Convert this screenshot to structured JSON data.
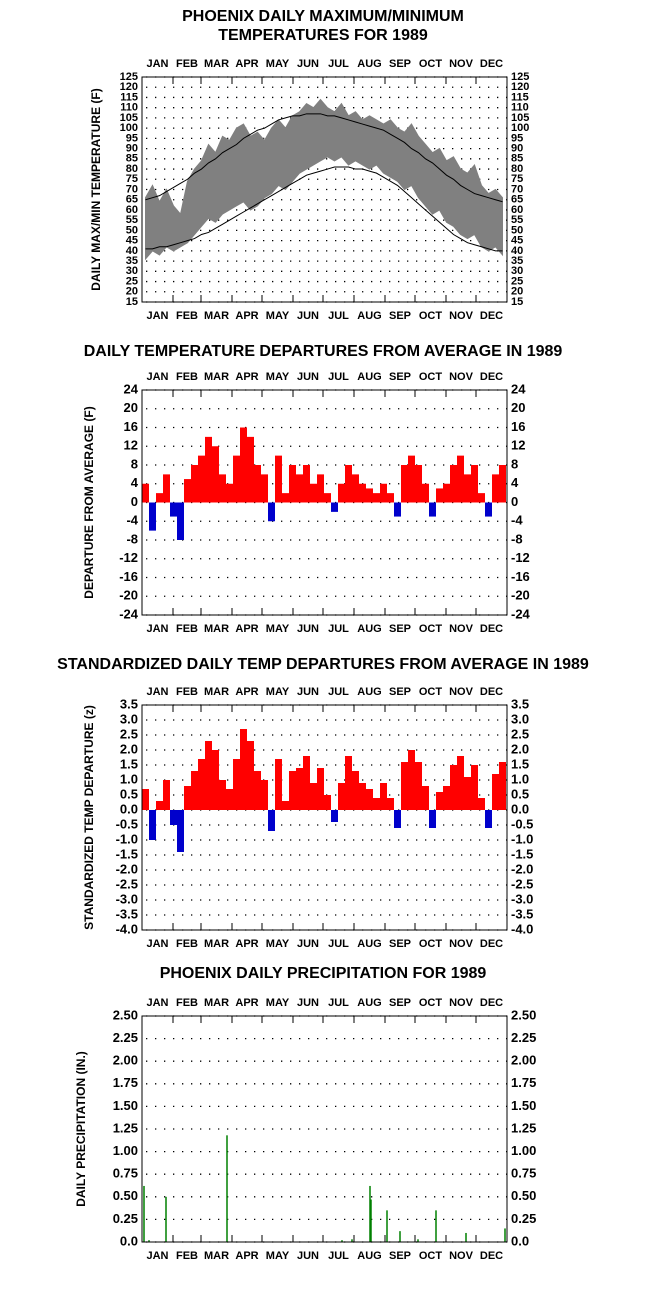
{
  "chart_data": [
    {
      "type": "band",
      "title": [
        "PHOENIX DAILY MAXIMUM/MINIMUM",
        "TEMPERATURES FOR 1989"
      ],
      "y_label": "DAILY MAX/MIN TEMPERATURE (F)",
      "categories": [
        "JAN",
        "FEB",
        "MAR",
        "APR",
        "MAY",
        "JUN",
        "JUL",
        "AUG",
        "SEP",
        "OCT",
        "NOV",
        "DEC"
      ],
      "xlim": [
        0,
        365
      ],
      "xticks": [
        0,
        31,
        59,
        90,
        120,
        151,
        181,
        212,
        243,
        273,
        304,
        334,
        365
      ],
      "ylim": [
        15,
        125
      ],
      "yticks": [
        15,
        20,
        25,
        30,
        35,
        40,
        45,
        50,
        55,
        60,
        65,
        70,
        75,
        80,
        85,
        90,
        95,
        100,
        105,
        110,
        115,
        120,
        125
      ],
      "grid": true,
      "x": [
        3.5,
        10.5,
        17.5,
        24.5,
        31.5,
        38.5,
        45.5,
        52.5,
        59.5,
        66.5,
        73.5,
        80.5,
        87.5,
        94.5,
        101.5,
        108.5,
        115.5,
        122.5,
        129.5,
        136.5,
        143.5,
        150.5,
        157.5,
        164.5,
        171.5,
        178.5,
        185.5,
        192.5,
        199.5,
        206.5,
        213.5,
        220.5,
        227.5,
        234.5,
        241.5,
        248.5,
        255.5,
        262.5,
        269.5,
        276.5,
        283.5,
        290.5,
        297.5,
        304.5,
        311.5,
        318.5,
        325.5,
        332.5,
        339.5,
        346.5,
        353.5,
        360.5
      ],
      "series": [
        {
          "color": "#808080",
          "values": [
            66,
            72,
            64,
            70,
            62,
            58,
            74,
            80,
            84,
            92,
            88,
            96,
            94,
            100,
            102,
            96,
            98,
            94,
            100,
            104,
            100,
            106,
            108,
            112,
            110,
            114,
            110,
            108,
            112,
            106,
            108,
            104,
            106,
            104,
            102,
            104,
            100,
            98,
            102,
            96,
            92,
            88,
            90,
            84,
            86,
            80,
            78,
            82,
            72,
            68,
            70,
            66
          ]
        },
        {
          "color": "#808080",
          "values": [
            36,
            40,
            38,
            42,
            40,
            42,
            44,
            48,
            52,
            56,
            54,
            58,
            60,
            62,
            64,
            60,
            62,
            66,
            68,
            72,
            70,
            74,
            78,
            80,
            82,
            84,
            86,
            84,
            86,
            82,
            84,
            82,
            80,
            82,
            78,
            76,
            74,
            70,
            72,
            66,
            62,
            58,
            60,
            54,
            52,
            48,
            46,
            48,
            42,
            40,
            42,
            38
          ]
        },
        {
          "color": "#000000",
          "values": [
            65,
            66,
            67,
            69,
            71,
            73,
            75,
            78,
            80,
            83,
            85,
            88,
            90,
            92,
            95,
            97,
            99,
            100,
            102,
            104,
            105,
            106,
            106,
            107,
            107,
            107,
            106,
            106,
            105,
            104,
            103,
            102,
            101,
            100,
            99,
            97,
            95,
            93,
            90,
            88,
            85,
            83,
            80,
            77,
            75,
            72,
            70,
            68,
            67,
            66,
            65,
            64
          ]
        },
        {
          "color": "#000000",
          "values": [
            41,
            41,
            42,
            42,
            43,
            44,
            45,
            46,
            48,
            49,
            51,
            53,
            55,
            57,
            59,
            61,
            63,
            65,
            67,
            69,
            71,
            73,
            75,
            77,
            78,
            79,
            80,
            81,
            81,
            81,
            80,
            80,
            79,
            78,
            76,
            74,
            72,
            69,
            66,
            63,
            60,
            57,
            54,
            51,
            48,
            46,
            44,
            43,
            42,
            41,
            40,
            40
          ]
        }
      ]
    },
    {
      "type": "departure_bar",
      "title": "DAILY TEMPERATURE DEPARTURES FROM AVERAGE IN 1989",
      "y_label": "DEPARTURE FROM AVERAGE (F)",
      "categories": [
        "JAN",
        "FEB",
        "MAR",
        "APR",
        "MAY",
        "JUN",
        "JUL",
        "AUG",
        "SEP",
        "OCT",
        "NOV",
        "DEC"
      ],
      "xlim": [
        0,
        365
      ],
      "xticks": [
        0,
        31,
        59,
        90,
        120,
        151,
        181,
        212,
        243,
        273,
        304,
        334,
        365
      ],
      "ylim": [
        -24,
        24
      ],
      "yticks": [
        -24,
        -20,
        -16,
        -12,
        -8,
        -4,
        0,
        4,
        8,
        12,
        16,
        20,
        24
      ],
      "grid": true,
      "positive_color": "#ff0000",
      "negative_color": "#0000cc",
      "x": [
        3.5,
        10.5,
        17.5,
        24.5,
        31.5,
        38.5,
        45.5,
        52.5,
        59.5,
        66.5,
        73.5,
        80.5,
        87.5,
        94.5,
        101.5,
        108.5,
        115.5,
        122.5,
        129.5,
        136.5,
        143.5,
        150.5,
        157.5,
        164.5,
        171.5,
        178.5,
        185.5,
        192.5,
        199.5,
        206.5,
        213.5,
        220.5,
        227.5,
        234.5,
        241.5,
        248.5,
        255.5,
        262.5,
        269.5,
        276.5,
        283.5,
        290.5,
        297.5,
        304.5,
        311.5,
        318.5,
        325.5,
        332.5,
        339.5,
        346.5,
        353.5,
        360.5
      ],
      "values": [
        4,
        -6,
        2,
        6,
        -3,
        -8,
        5,
        8,
        10,
        14,
        12,
        6,
        4,
        10,
        16,
        14,
        8,
        6,
        -4,
        10,
        2,
        8,
        6,
        8,
        4,
        6,
        2,
        -2,
        4,
        8,
        6,
        4,
        3,
        2,
        4,
        2,
        -3,
        8,
        10,
        8,
        4,
        -3,
        3,
        4,
        8,
        10,
        6,
        8,
        2,
        -3,
        6,
        8
      ]
    },
    {
      "type": "departure_bar",
      "title": "STANDARDIZED DAILY TEMP DEPARTURES FROM AVERAGE IN 1989",
      "y_label": "STANDARDIZED TEMP DEPARTURE (z)",
      "categories": [
        "JAN",
        "FEB",
        "MAR",
        "APR",
        "MAY",
        "JUN",
        "JUL",
        "AUG",
        "SEP",
        "OCT",
        "NOV",
        "DEC"
      ],
      "xlim": [
        0,
        365
      ],
      "xticks": [
        0,
        31,
        59,
        90,
        120,
        151,
        181,
        212,
        243,
        273,
        304,
        334,
        365
      ],
      "ylim": [
        -4,
        3.5
      ],
      "yticks": [
        {
          "value": -4,
          "label": "-4.0"
        },
        -3.5,
        {
          "value": -3,
          "label": "-3.0"
        },
        -2.5,
        {
          "value": -2,
          "label": "-2.0"
        },
        -1.5,
        {
          "value": -1,
          "label": "-1.0"
        },
        -0.5,
        {
          "value": 0,
          "label": "0.0"
        },
        0.5,
        {
          "value": 1,
          "label": "1.0"
        },
        1.5,
        {
          "value": 2,
          "label": "2.0"
        },
        2.5,
        {
          "value": 3,
          "label": "3.0"
        },
        3.5
      ],
      "grid": true,
      "positive_color": "#ff0000",
      "negative_color": "#0000cc",
      "x": [
        3.5,
        10.5,
        17.5,
        24.5,
        31.5,
        38.5,
        45.5,
        52.5,
        59.5,
        66.5,
        73.5,
        80.5,
        87.5,
        94.5,
        101.5,
        108.5,
        115.5,
        122.5,
        129.5,
        136.5,
        143.5,
        150.5,
        157.5,
        164.5,
        171.5,
        178.5,
        185.5,
        192.5,
        199.5,
        206.5,
        213.5,
        220.5,
        227.5,
        234.5,
        241.5,
        248.5,
        255.5,
        262.5,
        269.5,
        276.5,
        283.5,
        290.5,
        297.5,
        304.5,
        311.5,
        318.5,
        325.5,
        332.5,
        339.5,
        346.5,
        353.5,
        360.5
      ],
      "values": [
        0.7,
        -1.0,
        0.3,
        1.0,
        -0.5,
        -1.4,
        0.8,
        1.3,
        1.7,
        2.3,
        2.0,
        1.0,
        0.7,
        1.7,
        2.7,
        2.3,
        1.3,
        1.0,
        -0.7,
        1.7,
        0.3,
        1.3,
        1.4,
        1.8,
        0.9,
        1.4,
        0.5,
        -0.4,
        0.9,
        1.8,
        1.3,
        0.9,
        0.7,
        0.4,
        0.9,
        0.4,
        -0.6,
        1.6,
        2.0,
        1.6,
        0.8,
        -0.6,
        0.6,
        0.8,
        1.5,
        1.8,
        1.1,
        1.5,
        0.4,
        -0.6,
        1.2,
        1.6
      ]
    },
    {
      "type": "bar",
      "title": "PHOENIX DAILY PRECIPITATION FOR 1989",
      "y_label": "DAILY PRECIPITATION (IN.)",
      "categories": [
        "JAN",
        "FEB",
        "MAR",
        "APR",
        "MAY",
        "JUN",
        "JUL",
        "AUG",
        "SEP",
        "OCT",
        "NOV",
        "DEC"
      ],
      "xlim": [
        0,
        365
      ],
      "xticks": [
        0,
        31,
        59,
        90,
        120,
        151,
        181,
        212,
        243,
        273,
        304,
        334,
        365
      ],
      "ylim": [
        0,
        2.5
      ],
      "yticks": [
        {
          "value": 0,
          "label": "0.0"
        },
        0.25,
        {
          "value": 0.5,
          "label": "0.50"
        },
        0.75,
        {
          "value": 1,
          "label": "1.00"
        },
        1.25,
        {
          "value": 1.5,
          "label": "1.50"
        },
        1.75,
        {
          "value": 2,
          "label": "2.00"
        },
        2.25,
        {
          "value": 2.5,
          "label": "2.50"
        }
      ],
      "grid": true,
      "color": "#008000",
      "x": [
        2,
        7,
        24,
        85,
        200,
        210,
        228,
        229,
        245,
        258,
        276,
        294,
        324,
        363
      ],
      "values": [
        0.62,
        0.02,
        0.5,
        1.18,
        0.02,
        0.03,
        0.62,
        0.47,
        0.35,
        0.12,
        0.03,
        0.35,
        0.1,
        0.15
      ]
    }
  ]
}
